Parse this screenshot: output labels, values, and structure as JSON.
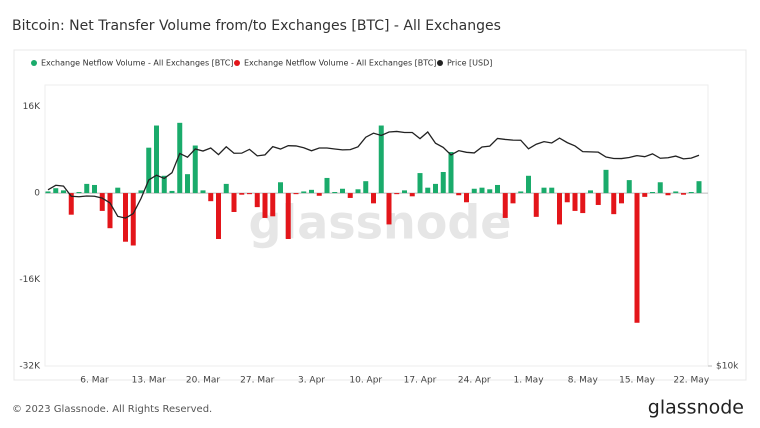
{
  "chart_data": {
    "type": "bar",
    "title": "Bitcoin: Net Transfer Volume from/to Exchanges [BTC] - All Exchanges",
    "watermark": "glassnode",
    "footer": "© 2023 Glassnode. All Rights Reserved.",
    "brand": "glassnode",
    "categories": [
      null,
      null,
      null,
      null,
      null,
      null,
      "6. Mar",
      null,
      null,
      null,
      null,
      null,
      null,
      "13. Mar",
      null,
      null,
      null,
      null,
      null,
      null,
      "20. Mar",
      null,
      null,
      null,
      null,
      null,
      null,
      "27. Mar",
      null,
      null,
      null,
      null,
      null,
      null,
      "3. Apr",
      null,
      null,
      null,
      null,
      null,
      null,
      "10. Apr",
      null,
      null,
      null,
      null,
      null,
      null,
      "17. Apr",
      null,
      null,
      null,
      null,
      null,
      null,
      "24. Apr",
      null,
      null,
      null,
      null,
      null,
      null,
      "1. May",
      null,
      null,
      null,
      null,
      null,
      null,
      "8. May",
      null,
      null,
      null,
      null,
      null,
      null,
      "15. May",
      null,
      null,
      null,
      null,
      null,
      null,
      "22. May",
      null
    ],
    "series": [
      {
        "name": "Exchange Netflow Volume - All Exchanges [BTC]",
        "color": "#1aab6b",
        "values": [
          300,
          900,
          500,
          null,
          200,
          1700,
          1500,
          null,
          null,
          1000,
          null,
          null,
          500,
          8400,
          12500,
          3200,
          400,
          13000,
          3500,
          8800,
          500,
          null,
          null,
          1700,
          null,
          null,
          null,
          null,
          null,
          null,
          2000,
          null,
          null,
          300,
          600,
          null,
          2800,
          200,
          800,
          null,
          700,
          2200,
          null,
          12500,
          null,
          null,
          500,
          null,
          3700,
          1000,
          1700,
          3900,
          7600,
          null,
          null,
          800,
          1000,
          700,
          1500,
          null,
          null,
          300,
          3200,
          null,
          1000,
          1000,
          null,
          null,
          null,
          null,
          500,
          null,
          4300,
          null,
          null,
          2400,
          null,
          null,
          200,
          2000,
          null,
          300,
          null,
          200,
          2200
        ]
      },
      {
        "name": "Exchange Netflow Volume - All Exchanges [BTC]",
        "color": "#e3151a",
        "values": [
          null,
          null,
          null,
          -4000,
          null,
          null,
          null,
          -3300,
          -6500,
          null,
          -9000,
          -9700,
          null,
          null,
          null,
          null,
          null,
          null,
          null,
          null,
          null,
          -1500,
          -8500,
          null,
          -3500,
          -300,
          -200,
          -2600,
          -4600,
          -4300,
          null,
          -8500,
          -200,
          null,
          null,
          -500,
          null,
          null,
          null,
          -900,
          null,
          null,
          -1900,
          null,
          -5800,
          -200,
          null,
          -600,
          null,
          null,
          null,
          null,
          null,
          -400,
          -1700,
          null,
          null,
          null,
          null,
          -4600,
          -1900,
          null,
          null,
          -4400,
          null,
          null,
          -5800,
          -1700,
          -3300,
          -3700,
          null,
          -2200,
          null,
          -3900,
          -1900,
          null,
          -24000,
          -700,
          null,
          null,
          -400,
          null,
          -300,
          null,
          null
        ]
      },
      {
        "name": "Price [USD]",
        "color": "#222222",
        "type": "line",
        "axis": "y2",
        "values": [
          23100,
          23600,
          23500,
          22400,
          22350,
          22430,
          22400,
          22200,
          21700,
          20360,
          20190,
          20630,
          22160,
          24200,
          24750,
          24380,
          25050,
          27450,
          26970,
          28040,
          27770,
          28170,
          27300,
          28330,
          27480,
          27490,
          27990,
          27140,
          27270,
          28350,
          28030,
          28480,
          28450,
          28200,
          27800,
          28170,
          28170,
          28040,
          27920,
          27950,
          28330,
          29650,
          30230,
          29900,
          30400,
          30480,
          30320,
          30320,
          29450,
          30400,
          28820,
          28250,
          27260,
          27820,
          27600,
          27520,
          28300,
          28420,
          29480,
          29340,
          29250,
          29230,
          28070,
          28680,
          29030,
          28850,
          29530,
          28900,
          28450,
          27690,
          27660,
          27620,
          26990,
          26800,
          26790,
          26930,
          27170,
          27030,
          27400,
          26830,
          26890,
          27110,
          26750,
          26850,
          27220
        ]
      }
    ],
    "ylim": [
      -32000,
      20000
    ],
    "yticks": [
      {
        "value": 16000,
        "label": "16K"
      },
      0,
      {
        "value": -16000,
        "label": "-16K"
      },
      {
        "value": -32000,
        "label": "-32K"
      }
    ],
    "y2lim": [
      10000,
      38000
    ],
    "y2scale": "log",
    "y2ticks": [
      {
        "value": 10000,
        "label": "$10k"
      }
    ],
    "grid": false,
    "legend": "top"
  }
}
